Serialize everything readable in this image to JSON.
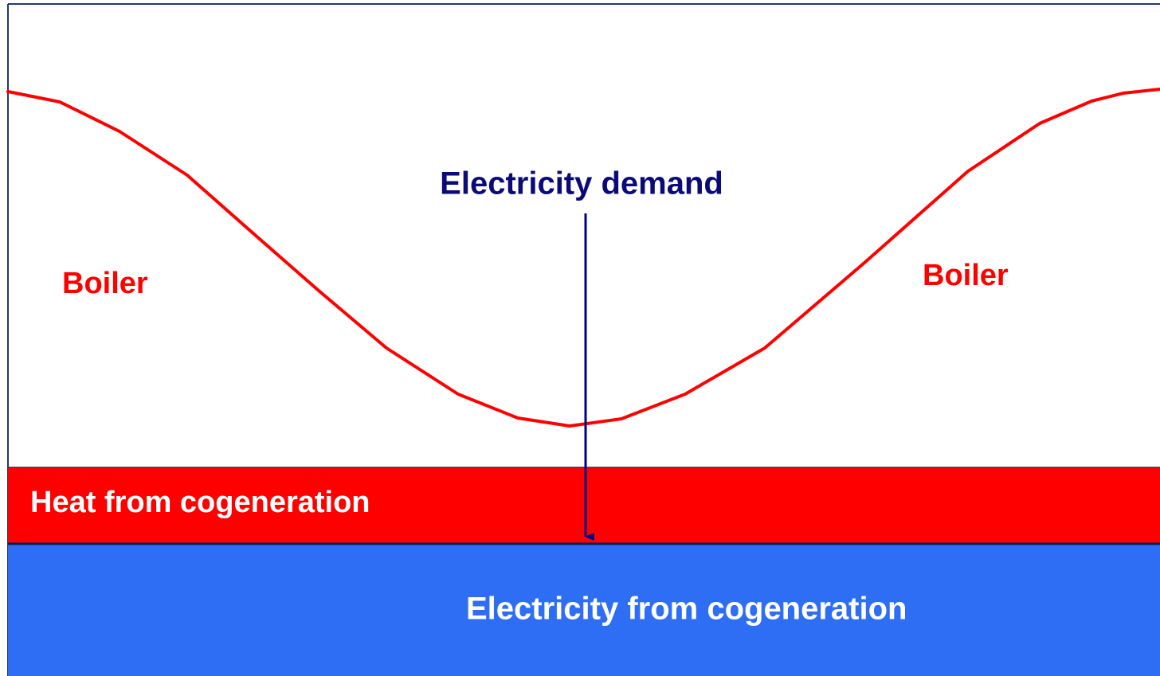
{
  "diagram": {
    "demand_label": "Electricity demand",
    "boiler_left": "Boiler",
    "boiler_right": "Boiler",
    "heat_band": "Heat from cogeneration",
    "electricity_band": "Electricity from cogeneration"
  }
}
